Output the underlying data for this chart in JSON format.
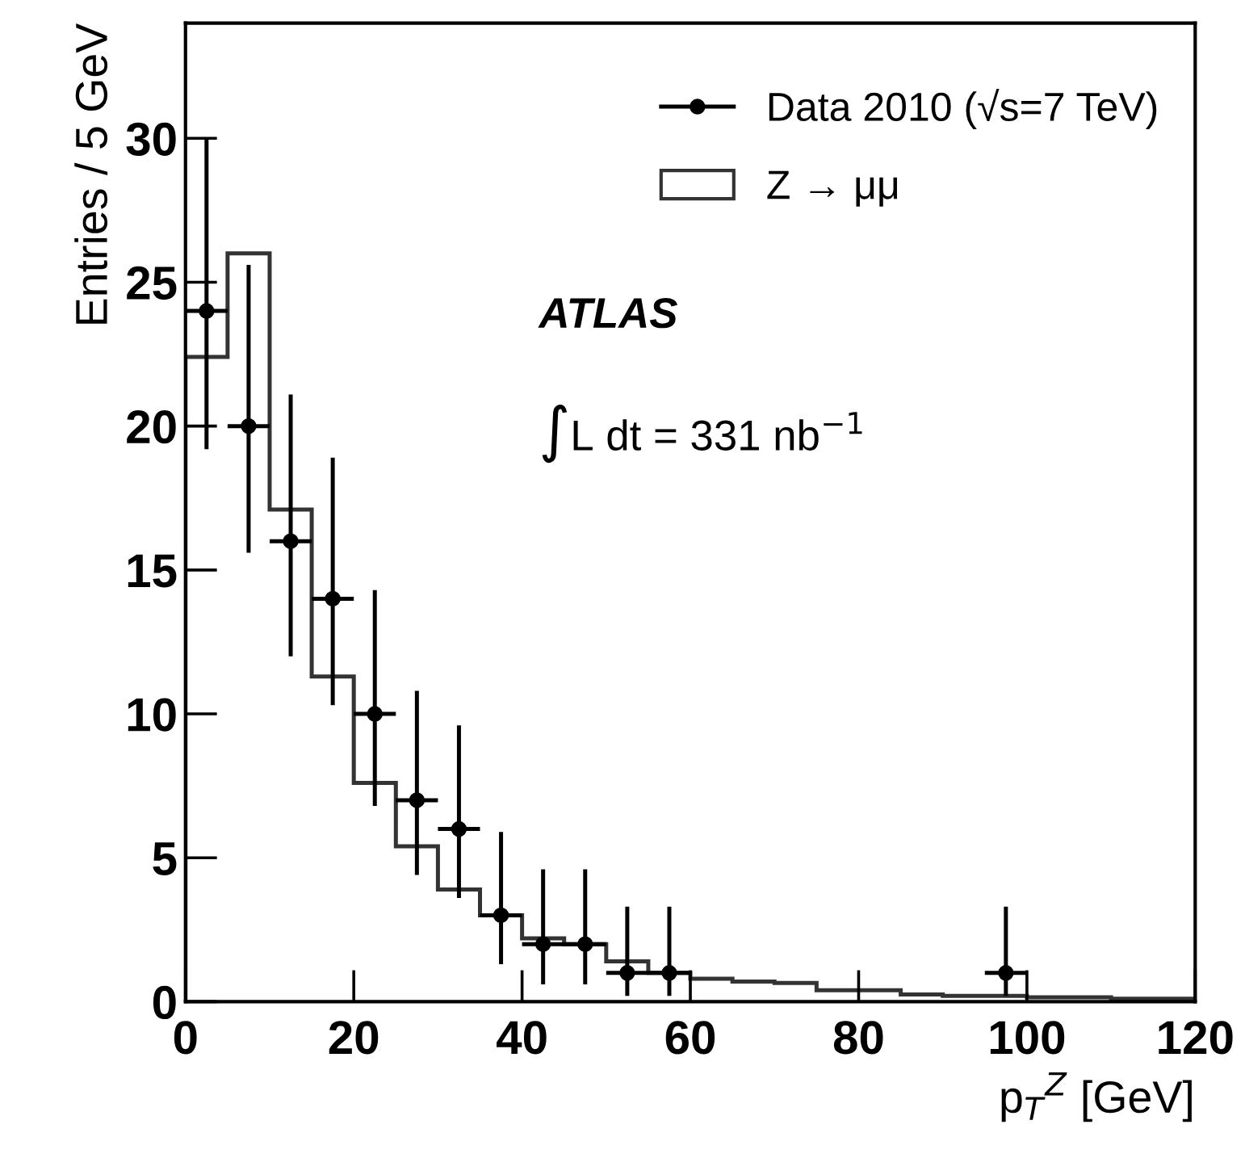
{
  "chart_data": {
    "type": "histogram",
    "xlabel": "p$_{T}$$^{Z}$ [GeV]",
    "ylabel": "Entries / 5 GeV",
    "xlim": [
      0,
      120
    ],
    "xticks": [
      0,
      20,
      40,
      60,
      80,
      100,
      120
    ],
    "ylim": [
      0,
      34
    ],
    "yticks": [
      0,
      5,
      10,
      15,
      20,
      25,
      30
    ],
    "legend": "top right",
    "annotations": [
      "ATLAS",
      "∫L dt = 331 nb$^{−1}$"
    ],
    "series": [
      {
        "name": "Data 2010 (√s=7 TeV)",
        "type": "scatter",
        "color": "#000000",
        "marker": "circle",
        "x": [
          2.5,
          7.5,
          12.5,
          17.5,
          22.5,
          27.5,
          32.5,
          37.5,
          42.5,
          47.5,
          52.5,
          57.5,
          97.5
        ],
        "values": [
          24,
          20,
          16,
          14,
          10,
          7,
          6,
          3,
          2,
          2,
          1,
          1,
          1
        ],
        "errors": [
          [
            19.2,
            30
          ],
          [
            15.6,
            25.6
          ],
          [
            12.0,
            21.1
          ],
          [
            10.3,
            18.9
          ],
          [
            6.8,
            14.3
          ],
          [
            4.4,
            10.8
          ],
          [
            3.6,
            9.6
          ],
          [
            1.3,
            5.9
          ],
          [
            0.6,
            4.6
          ],
          [
            0.6,
            4.6
          ],
          [
            0.2,
            3.3
          ],
          [
            0.2,
            3.3
          ],
          [
            0.2,
            3.3
          ]
        ],
        "xerrors": [
          2.5,
          2.5,
          2.5,
          2.5,
          2.5,
          2.5,
          2.5,
          2.5,
          2.5,
          2.5,
          2.5,
          2.5,
          2.5
        ]
      },
      {
        "name": "Z → μμ",
        "color": "#333333",
        "bins": [
          0,
          5,
          10,
          15,
          20,
          25,
          30,
          35,
          40,
          45,
          50,
          55,
          60,
          65,
          70,
          75,
          80,
          85,
          90,
          95,
          100,
          105,
          110,
          115,
          120
        ],
        "values": [
          22.4,
          26,
          17.1,
          11.3,
          7.6,
          5.4,
          3.9,
          3.0,
          2.2,
          2.0,
          1.4,
          1.0,
          0.8,
          0.7,
          0.65,
          0.4,
          0.4,
          0.25,
          0.2,
          0.2,
          0.15,
          0.15,
          0.1,
          0.1
        ]
      }
    ]
  }
}
